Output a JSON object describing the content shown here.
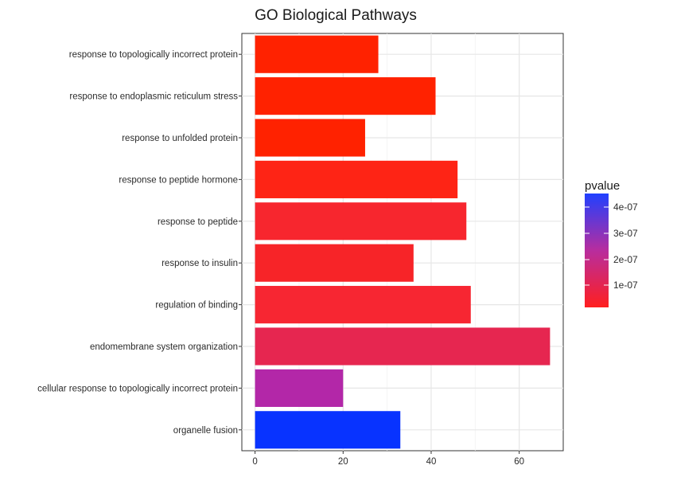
{
  "chart_data": {
    "type": "bar",
    "orientation": "horizontal",
    "title": "GO Biological Pathways",
    "xlabel": "",
    "ylabel": "",
    "xlim": [
      -3,
      70
    ],
    "xticks": [
      0,
      20,
      40,
      60
    ],
    "grid": true,
    "legend_position": "right",
    "categories": [
      "response to topologically incorrect protein",
      "response to endoplasmic reticulum stress",
      "response to unfolded protein",
      "response to peptide hormone",
      "response to peptide",
      "response to insulin",
      "regulation of binding",
      "endomembrane system organization",
      "cellular response to topologically incorrect protein",
      "organelle fusion"
    ],
    "values": [
      28,
      41,
      25,
      46,
      48,
      36,
      49,
      67,
      20,
      33
    ],
    "bar_colors": [
      "#ff2200",
      "#ff2200",
      "#ff2200",
      "#fe2415",
      "#f7262e",
      "#f72428",
      "#f72632",
      "#e62650",
      "#b327a8",
      "#0833ff"
    ],
    "color_scale": {
      "title": "pvalue",
      "low_color": "#ff1f1f",
      "high_color": "#2040ff",
      "labels": [
        "4e-07",
        "3e-07",
        "2e-07",
        "1e-07"
      ]
    }
  }
}
